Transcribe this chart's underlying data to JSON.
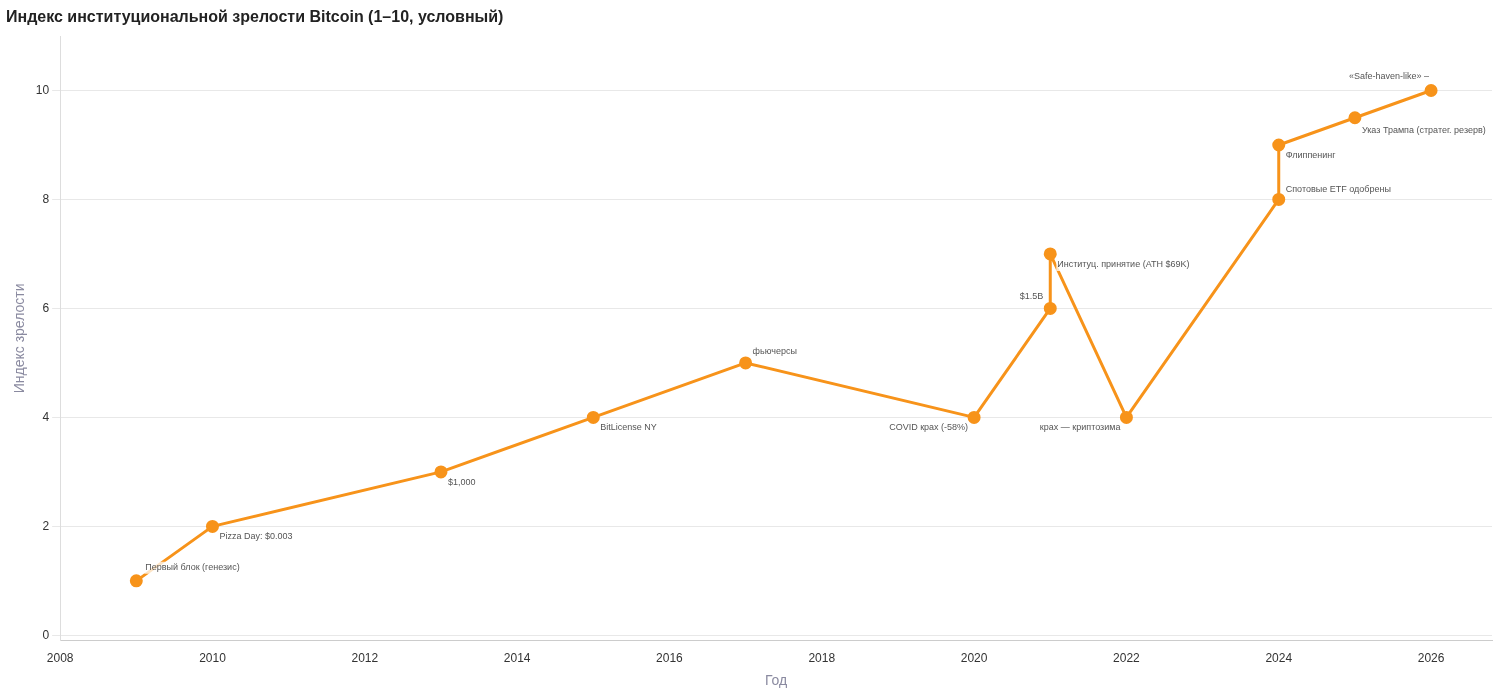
{
  "chart_data": {
    "type": "line",
    "title": "Индекс институциональной зрелости Bitcoin (1–10, условный)",
    "xlabel": "Год",
    "ylabel": "Индекс зрелости",
    "x": [
      2009,
      2010,
      2013,
      2015,
      2017,
      2020,
      2021,
      2021,
      2022,
      2024,
      2024,
      2025,
      2026
    ],
    "series": [
      {
        "color": "#f7931a",
        "values": [
          1,
          2,
          3,
          4,
          5,
          4,
          6,
          7,
          4,
          8,
          9,
          9.5,
          10
        ]
      }
    ],
    "xlim": [
      2008,
      2026.8
    ],
    "xticks": [
      2008,
      2010,
      2012,
      2014,
      2016,
      2018,
      2020,
      2022,
      2024,
      2026
    ],
    "ylim": [
      -0.1,
      11
    ],
    "yticks": [
      0,
      2,
      4,
      6,
      8,
      10
    ],
    "grid": "y",
    "legend": false,
    "marker": "circle",
    "line_style": "solid",
    "annotations": [
      {
        "text": "Первый блок (генезис)",
        "x": 2009,
        "y": 1
      },
      {
        "text": "Pizza Day: $0.003",
        "x": 2010,
        "y": 2
      },
      {
        "text": "$1,000",
        "x": 2013,
        "y": 3
      },
      {
        "text": "BitLicense NY",
        "x": 2015,
        "y": 4
      },
      {
        "text": "фьючерсы",
        "x": 2017,
        "y": 5
      },
      {
        "text": "COVID крах (-58%)",
        "x": 2020,
        "y": 4
      },
      {
        "text": "$1.5B",
        "x": 2021,
        "y": 6
      },
      {
        "text": "Институц. принятие (ATH $69K)",
        "x": 2021,
        "y": 7
      },
      {
        "text": "крах — криптозима",
        "x": 2022,
        "y": 4
      },
      {
        "text": "Спотовые ETF одобрены",
        "x": 2024,
        "y": 8
      },
      {
        "text": "Флиппенинг",
        "x": 2024,
        "y": 9
      },
      {
        "text": "Указ Трампа (стратег. резерв)",
        "x": 2025,
        "y": 9.5
      },
      {
        "text": "«Safe-haven-like» –",
        "x": 2026,
        "y": 10
      }
    ]
  }
}
